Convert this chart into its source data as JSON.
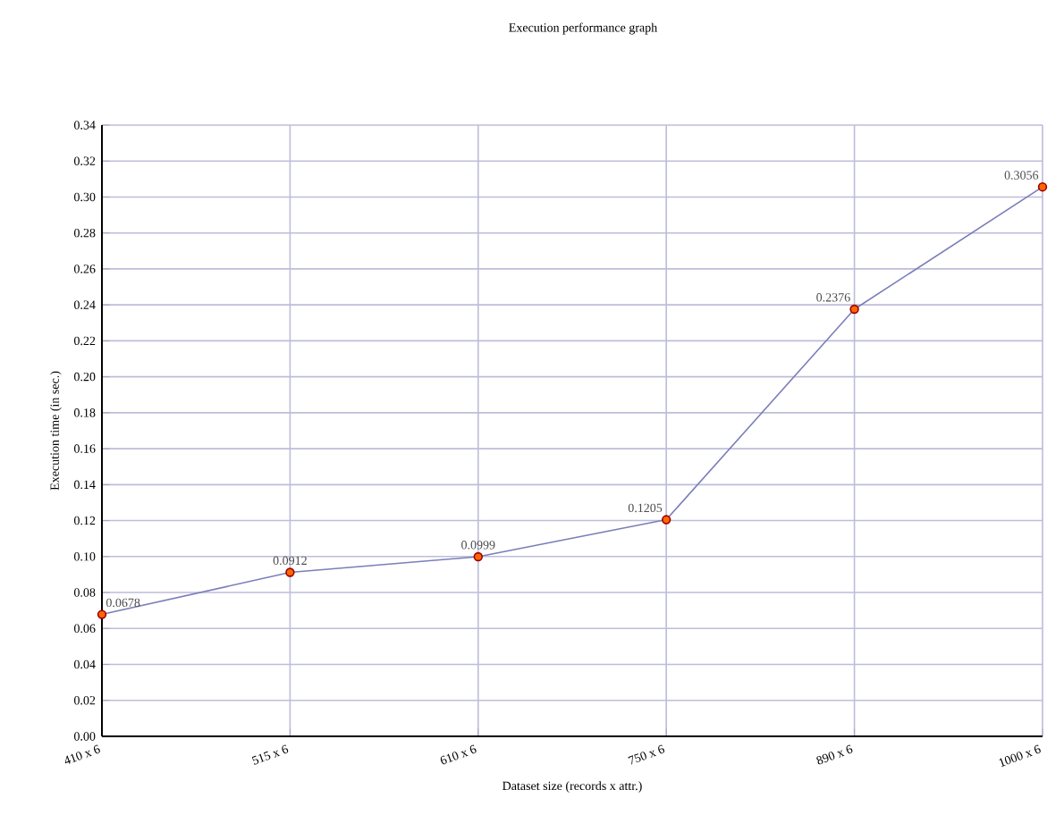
{
  "chart_data": {
    "type": "line",
    "title": "Execution performance graph",
    "xlabel": "Dataset size (records x attr.)",
    "ylabel": "Execution time (in sec.)",
    "categories": [
      "410 x 6",
      "515 x 6",
      "610 x 6",
      "750 x 6",
      "890 x 6",
      "1000 x 6"
    ],
    "series": [
      {
        "color": "#7a7eb8",
        "values": [
          0.0678,
          0.0912,
          0.0999,
          0.1205,
          0.2376,
          0.3056
        ]
      }
    ],
    "marker": "circle",
    "data_labels": true,
    "grid": true,
    "ylim": [
      0,
      0.34
    ],
    "yticks": [
      {
        "value": 0,
        "label": "0.00"
      },
      {
        "value": 0.02,
        "label": "0.02"
      },
      {
        "value": 0.04,
        "label": "0.04"
      },
      {
        "value": 0.06,
        "label": "0.06"
      },
      {
        "value": 0.08,
        "label": "0.08"
      },
      {
        "value": 0.1,
        "label": "0.10"
      },
      {
        "value": 0.12,
        "label": "0.12"
      },
      {
        "value": 0.14,
        "label": "0.14"
      },
      {
        "value": 0.16,
        "label": "0.16"
      },
      {
        "value": 0.18,
        "label": "0.18"
      },
      {
        "value": 0.2,
        "label": "0.20"
      },
      {
        "value": 0.22,
        "label": "0.22"
      },
      {
        "value": 0.24,
        "label": "0.24"
      },
      {
        "value": 0.26,
        "label": "0.26"
      },
      {
        "value": 0.28,
        "label": "0.28"
      },
      {
        "value": 0.3,
        "label": "0.30"
      },
      {
        "value": 0.32,
        "label": "0.32"
      },
      {
        "value": 0.34,
        "label": "0.34"
      }
    ]
  }
}
